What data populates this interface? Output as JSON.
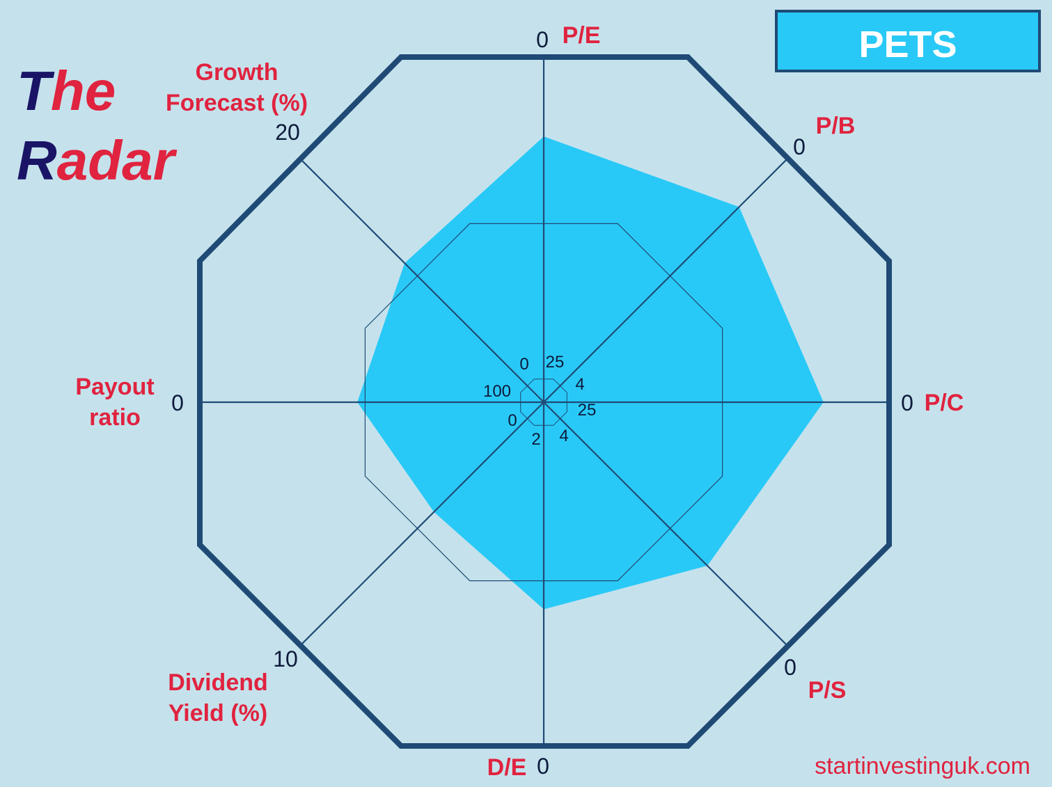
{
  "logo": {
    "line1_first": "T",
    "line1_rest": "he",
    "line2_first": "R",
    "line2_rest": "adar"
  },
  "ticker": "PETS",
  "website": "startinvestinguk.com",
  "colors": {
    "background": "#c5e2ec",
    "frame": "#1f4a75",
    "fill": "#29c9f7",
    "label_red": "#e0233f",
    "logo_dark": "#1a1466"
  },
  "chart_data": {
    "type": "radar",
    "axes": [
      {
        "name": "P/E",
        "outer_tick": "0",
        "inner_tick": "25",
        "value_fraction": 0.77
      },
      {
        "name": "P/B",
        "outer_tick": "0",
        "inner_tick": "4",
        "value_fraction": 0.8
      },
      {
        "name": "P/C",
        "outer_tick": "0",
        "inner_tick": "25",
        "value_fraction": 0.81
      },
      {
        "name": "P/S",
        "outer_tick": "0",
        "inner_tick": "4",
        "value_fraction": 0.67
      },
      {
        "name": "D/E",
        "outer_tick": "0",
        "inner_tick": "2",
        "value_fraction": 0.6
      },
      {
        "name": "Dividend\nYield (%)",
        "outer_tick": "10",
        "inner_tick": "0",
        "value_fraction": 0.45
      },
      {
        "name": "Payout\nratio",
        "outer_tick": "0",
        "inner_tick": "100",
        "value_fraction": 0.54
      },
      {
        "name": "Growth\nForecast (%)",
        "outer_tick": "20",
        "inner_tick": "0",
        "value_fraction": 0.57
      }
    ],
    "reference_ring_fraction": 0.56
  }
}
